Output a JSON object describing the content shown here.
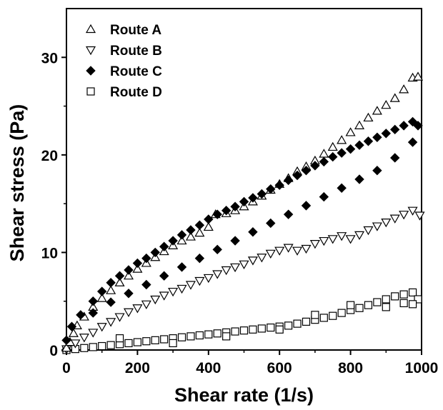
{
  "chart_data": {
    "type": "scatter",
    "title": "",
    "xlabel": "Shear rate (1/s)",
    "ylabel": "Shear stress (Pa)",
    "xlim": [
      0,
      1000
    ],
    "ylim": [
      0,
      35
    ],
    "xticks": [
      0,
      200,
      400,
      600,
      800,
      1000
    ],
    "yticks": [
      0,
      10,
      20,
      30
    ],
    "xtick_labels": [
      "0",
      "200",
      "400",
      "600",
      "800",
      "1000"
    ],
    "ytick_labels": [
      "0",
      "10",
      "20",
      "30"
    ],
    "grid": false,
    "legend_position": "top-left",
    "series": [
      {
        "name": "Route A",
        "marker": "triangle-up-open",
        "color": "#000000",
        "points": [
          [
            0,
            0.2
          ],
          [
            10,
            0.8
          ],
          [
            20,
            1.7
          ],
          [
            30,
            2.5
          ],
          [
            50,
            3.4
          ],
          [
            75,
            4.4
          ],
          [
            100,
            5.3
          ],
          [
            125,
            6.1
          ],
          [
            150,
            6.9
          ],
          [
            175,
            7.6
          ],
          [
            200,
            8.3
          ],
          [
            225,
            8.9
          ],
          [
            250,
            9.5
          ],
          [
            275,
            10.1
          ],
          [
            300,
            10.7
          ],
          [
            325,
            11.2
          ],
          [
            350,
            11.6
          ],
          [
            375,
            12.0
          ],
          [
            400,
            12.6
          ],
          [
            420,
            13.9
          ],
          [
            450,
            14.0
          ],
          [
            475,
            14.3
          ],
          [
            500,
            14.7
          ],
          [
            525,
            15.2
          ],
          [
            550,
            15.8
          ],
          [
            575,
            16.4
          ],
          [
            600,
            17.0
          ],
          [
            625,
            17.6
          ],
          [
            650,
            18.3
          ],
          [
            675,
            18.8
          ],
          [
            700,
            19.4
          ],
          [
            725,
            20.1
          ],
          [
            750,
            20.8
          ],
          [
            775,
            21.5
          ],
          [
            800,
            22.3
          ],
          [
            825,
            23.0
          ],
          [
            850,
            23.8
          ],
          [
            875,
            24.5
          ],
          [
            900,
            25.1
          ],
          [
            925,
            25.8
          ],
          [
            950,
            26.7
          ],
          [
            975,
            27.9
          ],
          [
            990,
            28.0
          ]
        ]
      },
      {
        "name": "Route B",
        "marker": "triangle-down-open",
        "color": "#000000",
        "points": [
          [
            0,
            0.1
          ],
          [
            25,
            0.7
          ],
          [
            50,
            1.3
          ],
          [
            75,
            1.8
          ],
          [
            100,
            2.4
          ],
          [
            125,
            2.9
          ],
          [
            150,
            3.4
          ],
          [
            175,
            3.9
          ],
          [
            200,
            4.3
          ],
          [
            225,
            4.7
          ],
          [
            250,
            5.2
          ],
          [
            275,
            5.6
          ],
          [
            300,
            6.0
          ],
          [
            325,
            6.3
          ],
          [
            350,
            6.7
          ],
          [
            375,
            7.1
          ],
          [
            400,
            7.4
          ],
          [
            425,
            7.8
          ],
          [
            450,
            8.2
          ],
          [
            475,
            8.5
          ],
          [
            500,
            8.8
          ],
          [
            525,
            9.2
          ],
          [
            550,
            9.5
          ],
          [
            575,
            9.9
          ],
          [
            600,
            10.2
          ],
          [
            625,
            10.5
          ],
          [
            650,
            10.2
          ],
          [
            675,
            10.4
          ],
          [
            700,
            10.9
          ],
          [
            725,
            11.2
          ],
          [
            750,
            11.4
          ],
          [
            775,
            11.7
          ],
          [
            800,
            11.4
          ],
          [
            825,
            11.8
          ],
          [
            850,
            12.3
          ],
          [
            875,
            12.7
          ],
          [
            900,
            13.1
          ],
          [
            925,
            13.5
          ],
          [
            950,
            13.9
          ],
          [
            975,
            14.3
          ],
          [
            995,
            13.8
          ]
        ]
      },
      {
        "name": "Route C",
        "marker": "diamond-filled",
        "color": "#000000",
        "points": [
          [
            0,
            1.0
          ],
          [
            15,
            2.4
          ],
          [
            40,
            3.6
          ],
          [
            75,
            5.0
          ],
          [
            100,
            6.0
          ],
          [
            125,
            6.9
          ],
          [
            150,
            7.6
          ],
          [
            175,
            8.2
          ],
          [
            200,
            8.9
          ],
          [
            225,
            9.4
          ],
          [
            250,
            10.0
          ],
          [
            275,
            10.6
          ],
          [
            300,
            11.2
          ],
          [
            325,
            11.8
          ],
          [
            350,
            12.3
          ],
          [
            375,
            12.8
          ],
          [
            400,
            13.4
          ],
          [
            425,
            13.9
          ],
          [
            450,
            14.3
          ],
          [
            475,
            14.7
          ],
          [
            500,
            15.2
          ],
          [
            525,
            15.6
          ],
          [
            550,
            16.0
          ],
          [
            575,
            16.5
          ],
          [
            600,
            16.9
          ],
          [
            625,
            17.4
          ],
          [
            650,
            17.9
          ],
          [
            675,
            18.4
          ],
          [
            700,
            18.9
          ],
          [
            725,
            19.3
          ],
          [
            750,
            19.8
          ],
          [
            775,
            20.2
          ],
          [
            800,
            20.6
          ],
          [
            825,
            21.0
          ],
          [
            850,
            21.4
          ],
          [
            875,
            21.8
          ],
          [
            900,
            22.2
          ],
          [
            925,
            22.6
          ],
          [
            950,
            23.0
          ],
          [
            975,
            23.4
          ],
          [
            990,
            23.0
          ],
          [
            75,
            3.8
          ],
          [
            125,
            4.9
          ],
          [
            175,
            5.8
          ],
          [
            225,
            6.7
          ],
          [
            275,
            7.6
          ],
          [
            325,
            8.5
          ],
          [
            375,
            9.4
          ],
          [
            425,
            10.3
          ],
          [
            475,
            11.2
          ],
          [
            525,
            12.1
          ],
          [
            575,
            13.0
          ],
          [
            625,
            13.9
          ],
          [
            675,
            14.8
          ],
          [
            725,
            15.7
          ],
          [
            775,
            16.6
          ],
          [
            825,
            17.5
          ],
          [
            875,
            18.4
          ],
          [
            925,
            19.7
          ],
          [
            975,
            21.3
          ]
        ]
      },
      {
        "name": "Route D",
        "marker": "square-open",
        "color": "#000000",
        "points": [
          [
            0,
            0.0
          ],
          [
            25,
            0.1
          ],
          [
            50,
            0.2
          ],
          [
            75,
            0.3
          ],
          [
            100,
            0.4
          ],
          [
            125,
            0.5
          ],
          [
            150,
            0.6
          ],
          [
            175,
            0.7
          ],
          [
            200,
            0.8
          ],
          [
            225,
            0.9
          ],
          [
            250,
            1.0
          ],
          [
            275,
            1.1
          ],
          [
            300,
            1.2
          ],
          [
            325,
            1.3
          ],
          [
            350,
            1.4
          ],
          [
            375,
            1.5
          ],
          [
            400,
            1.6
          ],
          [
            425,
            1.7
          ],
          [
            450,
            1.8
          ],
          [
            475,
            1.9
          ],
          [
            500,
            2.0
          ],
          [
            525,
            2.1
          ],
          [
            550,
            2.2
          ],
          [
            575,
            2.3
          ],
          [
            600,
            2.4
          ],
          [
            625,
            2.5
          ],
          [
            650,
            2.7
          ],
          [
            675,
            2.9
          ],
          [
            700,
            3.1
          ],
          [
            725,
            3.3
          ],
          [
            750,
            3.5
          ],
          [
            775,
            3.8
          ],
          [
            800,
            4.1
          ],
          [
            825,
            4.3
          ],
          [
            850,
            4.6
          ],
          [
            875,
            4.9
          ],
          [
            900,
            5.2
          ],
          [
            925,
            5.5
          ],
          [
            950,
            5.7
          ],
          [
            975,
            5.9
          ],
          [
            990,
            5.2
          ],
          [
            150,
            1.2
          ],
          [
            300,
            0.7
          ],
          [
            450,
            1.4
          ],
          [
            600,
            2.1
          ],
          [
            700,
            3.6
          ],
          [
            800,
            4.6
          ],
          [
            900,
            4.4
          ],
          [
            950,
            4.8
          ],
          [
            975,
            4.7
          ]
        ]
      }
    ]
  }
}
